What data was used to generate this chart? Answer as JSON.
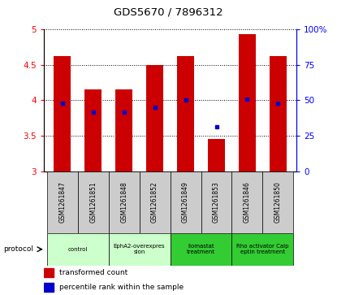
{
  "title": "GDS5670 / 7896312",
  "samples": [
    "GSM1261847",
    "GSM1261851",
    "GSM1261848",
    "GSM1261852",
    "GSM1261849",
    "GSM1261853",
    "GSM1261846",
    "GSM1261850"
  ],
  "bar_bottoms": [
    3.0,
    3.0,
    3.0,
    3.0,
    3.0,
    3.0,
    3.0,
    3.0
  ],
  "bar_tops": [
    4.63,
    4.15,
    4.15,
    4.5,
    4.63,
    3.45,
    4.93,
    4.63
  ],
  "percentile_values": [
    3.96,
    3.83,
    3.83,
    3.9,
    4.0,
    3.63,
    4.02,
    3.96
  ],
  "ylim_left": [
    3.0,
    5.0
  ],
  "ylim_right": [
    0,
    100
  ],
  "yticks_left": [
    3.0,
    3.5,
    4.0,
    4.5,
    5.0
  ],
  "yticks_right": [
    0,
    25,
    50,
    75,
    100
  ],
  "ytick_labels_left": [
    "3",
    "3.5",
    "4",
    "4.5",
    "5"
  ],
  "ytick_labels_right": [
    "0",
    "25",
    "50",
    "75",
    "100%"
  ],
  "bar_color": "#cc0000",
  "dot_color": "#0000cc",
  "protocols": [
    {
      "label": "control",
      "span": [
        0,
        1
      ],
      "color": "#ccffcc"
    },
    {
      "label": "EphA2-overexpres\nsion",
      "span": [
        2,
        3
      ],
      "color": "#ccffcc"
    },
    {
      "label": "Ilomastat\ntreatment",
      "span": [
        4,
        5
      ],
      "color": "#33cc33"
    },
    {
      "label": "Rho activator Calp\neptin treatment",
      "span": [
        6,
        7
      ],
      "color": "#33cc33"
    }
  ],
  "gsm_bg": "#cccccc",
  "legend_items": [
    {
      "label": "transformed count",
      "color": "#cc0000"
    },
    {
      "label": "percentile rank within the sample",
      "color": "#0000cc"
    }
  ]
}
